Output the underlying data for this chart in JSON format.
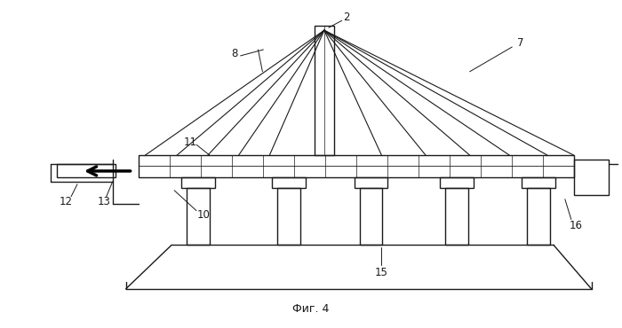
{
  "bg_color": "#ffffff",
  "line_color": "#1a1a1a",
  "lw": 1.0,
  "fig_width": 7.0,
  "fig_height": 3.7,
  "dpi": 100,
  "caption": "Фиг. 4"
}
